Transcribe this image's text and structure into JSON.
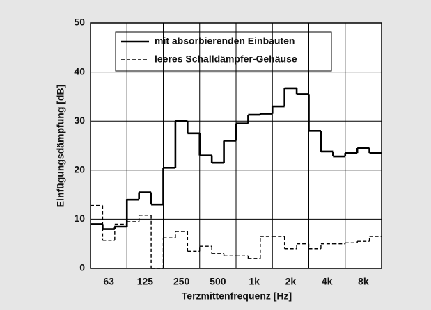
{
  "chart_data": {
    "type": "step",
    "xlabel": "Terzmittenfrequenz  [Hz]",
    "ylabel": "Einfügungsdämpfung  [dB]",
    "categories": [
      null,
      "63",
      null,
      null,
      "125",
      null,
      null,
      "250",
      null,
      null,
      "500",
      null,
      null,
      "1k",
      null,
      null,
      "2k",
      null,
      null,
      "4k",
      null,
      null,
      "8k",
      null
    ],
    "series": [
      {
        "name": "mit absorbierenden Einbauten",
        "color": "#000000",
        "dash": false,
        "values": [
          9,
          8,
          8.5,
          14,
          15.5,
          13,
          20.5,
          30,
          27.5,
          23,
          21.5,
          26,
          29.5,
          31.3,
          31.5,
          33,
          36.7,
          35.5,
          28,
          23.8,
          22.8,
          23.5,
          24.5,
          23.5
        ]
      },
      {
        "name": "leeres Schalldämpfer-Gehäuse",
        "color": "#000000",
        "dash": true,
        "values": [
          12.8,
          5.7,
          9,
          9.5,
          10.8,
          0,
          6.2,
          7.5,
          3.5,
          4.5,
          3,
          2.5,
          2.5,
          2,
          6.5,
          6.5,
          4,
          5,
          4,
          5,
          5,
          5.2,
          5.5,
          6.5
        ]
      }
    ],
    "ylim": [
      0,
      50
    ],
    "yticks": [
      0,
      10,
      20,
      30,
      40,
      50
    ],
    "grid": true
  }
}
